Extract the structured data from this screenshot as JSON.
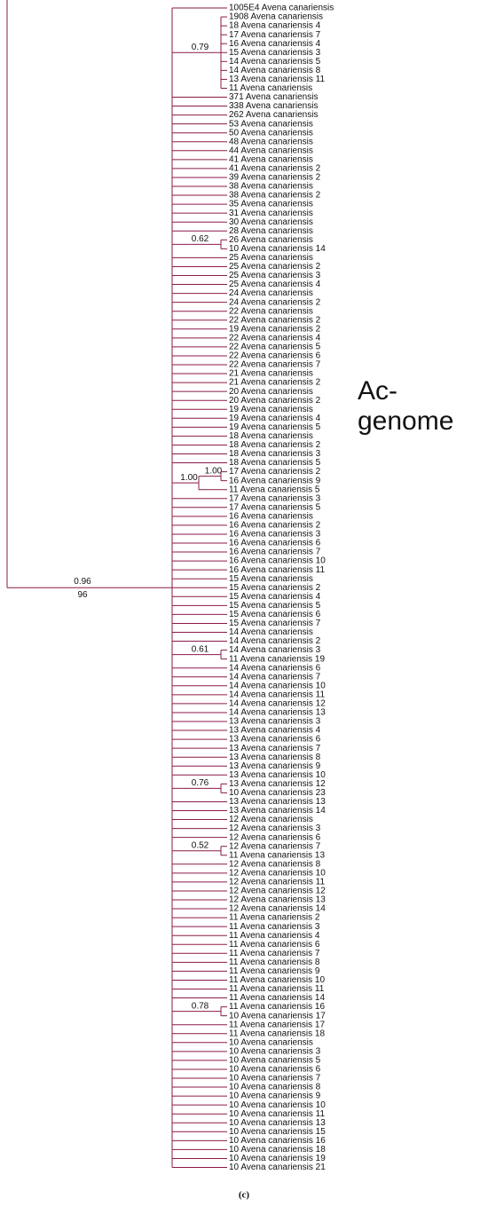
{
  "tree": {
    "support": "0.96",
    "bootstrap": "96",
    "children": [
      "1005E4 Avena canariensis",
      {
        "support": "0.79",
        "children": [
          "1908 Avena canariensis",
          "18 Avena canariensis 4",
          "17 Avena canariensis 7",
          "16 Avena canariensis 4",
          "15 Avena canariensis 3",
          "14 Avena canariensis 5",
          "14 Avena canariensis 8",
          "13 Avena canariensis 11",
          "11 Avena canariensis"
        ]
      },
      "371 Avena canariensis",
      "338 Avena canariensis",
      "262 Avena canariensis",
      "53 Avena canariensis",
      "50 Avena canariensis",
      "48 Avena canariensis",
      "44 Avena canariensis",
      "41 Avena canariensis",
      "41 Avena canariensis 2",
      "39 Avena canariensis 2",
      "38 Avena canariensis",
      "38 Avena canariensis 2",
      "35 Avena canariensis",
      "31 Avena canariensis",
      "30 Avena canariensis",
      "28 Avena canariensis",
      {
        "support": "0.62",
        "children": [
          "26 Avena canariensis",
          "10 Avena canariensis 14"
        ]
      },
      "25 Avena canariensis",
      "25 Avena canariensis 2",
      "25 Avena canariensis 3",
      "25 Avena canariensis 4",
      "24 Avena canariensis",
      "24 Avena canariensis 2",
      "22 Avena canariensis",
      "22 Avena canariensis 2",
      "19 Avena canariensis 2",
      "22 Avena canariensis 4",
      "22 Avena canariensis 5",
      "22 Avena canariensis 6",
      "22 Avena canariensis 7",
      "21 Avena canariensis",
      "21 Avena canariensis 2",
      "20 Avena canariensis",
      "20 Avena canariensis 2",
      "19 Avena canariensis",
      "19 Avena canariensis 4",
      "19 Avena canariensis 5",
      "18 Avena canariensis",
      "18 Avena canariensis 2",
      "18 Avena canariensis 3",
      "18 Avena canariensis 5",
      {
        "support": "1.00",
        "children": [
          {
            "support": "1.00",
            "children": [
              "17 Avena canariensis 2",
              "16 Avena canariensis 9"
            ]
          },
          "11 Avena canariensis 5"
        ]
      },
      "17 Avena canariensis 3",
      "17 Avena canariensis 5",
      "16 Avena canariensis",
      "16 Avena canariensis 2",
      "16 Avena canariensis 3",
      "16 Avena canariensis 6",
      "16 Avena canariensis 7",
      "16 Avena canariensis 10",
      "16 Avena canariensis 11",
      "15 Avena canariensis",
      "15 Avena canariensis 2",
      "15 Avena canariensis 4",
      "15 Avena canariensis 5",
      "15 Avena canariensis 6",
      "15 Avena canariensis 7",
      "14 Avena canariensis",
      "14 Avena canariensis 2",
      {
        "support": "0.61",
        "children": [
          "14 Avena canariensis 3",
          "11 Avena canariensis 19"
        ]
      },
      "14 Avena canariensis 6",
      "14 Avena canariensis 7",
      "14 Avena canariensis 10",
      "14 Avena canariensis 11",
      "14 Avena canariensis 12",
      "14 Avena canariensis 13",
      "13 Avena canariensis 3",
      "13 Avena canariensis 4",
      "13 Avena canariensis 6",
      "13 Avena canariensis 7",
      "13 Avena canariensis 8",
      "13 Avena canariensis 9",
      "13 Avena canariensis 10",
      {
        "support": "0.76",
        "children": [
          "13 Avena canariensis 12",
          "10 Avena canariensis 23"
        ]
      },
      "13 Avena canariensis 13",
      "13 Avena canariensis 14",
      "12 Avena canariensis",
      "12 Avena canariensis 3",
      "12 Avena canariensis 6",
      {
        "support": "0.52",
        "children": [
          "12 Avena canariensis 7",
          "11 Avena canariensis 13"
        ]
      },
      "12 Avena canariensis 8",
      "12 Avena canariensis 10",
      "12 Avena canariensis 11",
      "12 Avena canariensis 12",
      "12 Avena canariensis 13",
      "12 Avena canariensis 14",
      "11 Avena canariensis 2",
      "11 Avena canariensis 3",
      "11 Avena canariensis 4",
      "11 Avena canariensis 6",
      "11 Avena canariensis 7",
      "11 Avena canariensis 8",
      "11 Avena canariensis 9",
      "11 Avena canariensis 10",
      "11 Avena canariensis 11",
      "11 Avena canariensis 14",
      {
        "support": "0.78",
        "children": [
          "11 Avena canariensis 16",
          "10 Avena canariensis 17"
        ]
      },
      "11 Avena canariensis 17",
      "11 Avena canariensis 18",
      "10 Avena canariensis",
      "10 Avena canariensis 3",
      "10 Avena canariensis 5",
      "10 Avena canariensis 6",
      "10 Avena canariensis 7",
      "10 Avena canariensis 8",
      "10 Avena canariensis 9",
      "10 Avena canariensis 10",
      "10 Avena canariensis 11",
      "10 Avena canariensis 13",
      "10 Avena canariensis 15",
      "10 Avena canariensis 16",
      "10 Avena canariensis 18",
      "10 Avena canariensis 19",
      "10 Avena canariensis 21"
    ]
  },
  "clade_label": [
    "Ac-",
    "genome"
  ],
  "caption": "(c)"
}
